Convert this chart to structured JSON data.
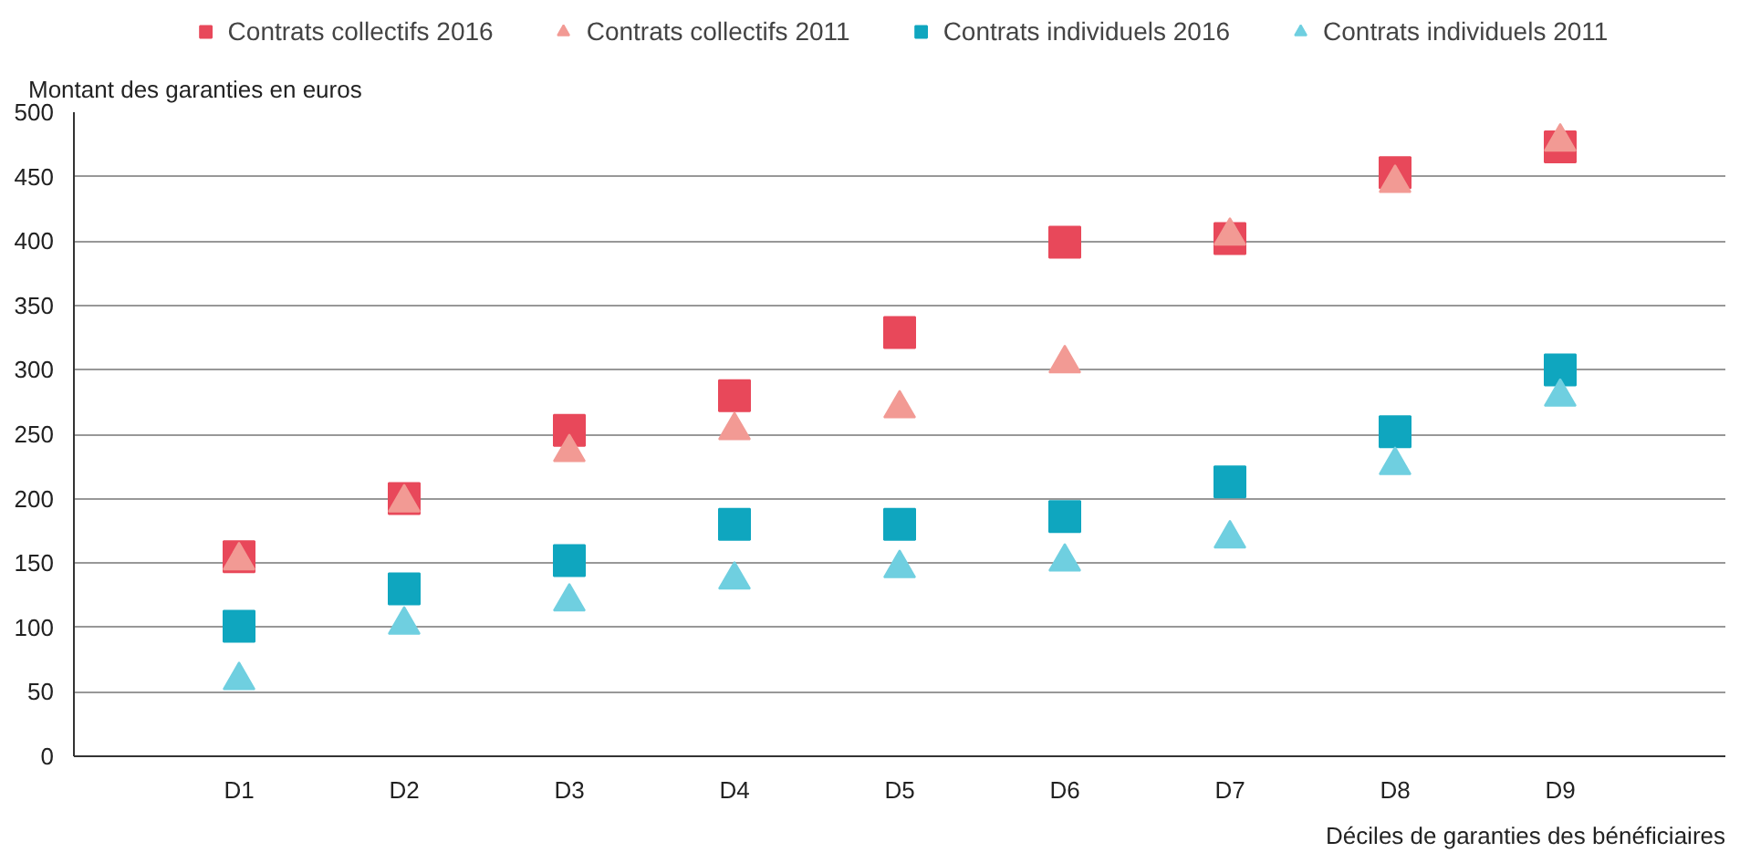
{
  "chart_data": {
    "type": "scatter",
    "ylabel": "Montant des garanties en euros",
    "xlabel": "Déciles de garanties des bénéficiaires",
    "categories": [
      "D1",
      "D2",
      "D3",
      "D4",
      "D5",
      "D6",
      "D7",
      "D8",
      "D9"
    ],
    "ylim": [
      0,
      500
    ],
    "yticks": [
      0,
      50,
      100,
      150,
      200,
      250,
      300,
      350,
      400,
      450,
      500
    ],
    "grid": "y",
    "legend": "top",
    "series": [
      {
        "name": "Contrats collectifs 2016",
        "color": "#e8485a",
        "marker": "square",
        "values": [
          155,
          200,
          253,
          280,
          329,
          399,
          402,
          453,
          473
        ]
      },
      {
        "name": "Contrats collectifs 2011",
        "color": "#f29a94",
        "marker": "triangle",
        "values": [
          152,
          197,
          236,
          253,
          270,
          305,
          404,
          445,
          477
        ]
      },
      {
        "name": "Contrats individuels 2016",
        "color": "#0fa6bf",
        "marker": "square",
        "values": [
          101,
          130,
          152,
          180,
          180,
          186,
          213,
          252,
          300
        ]
      },
      {
        "name": "Contrats individuels 2011",
        "color": "#6fcfe0",
        "marker": "triangle",
        "values": [
          59,
          102,
          120,
          137,
          146,
          151,
          169,
          226,
          279
        ]
      }
    ]
  }
}
